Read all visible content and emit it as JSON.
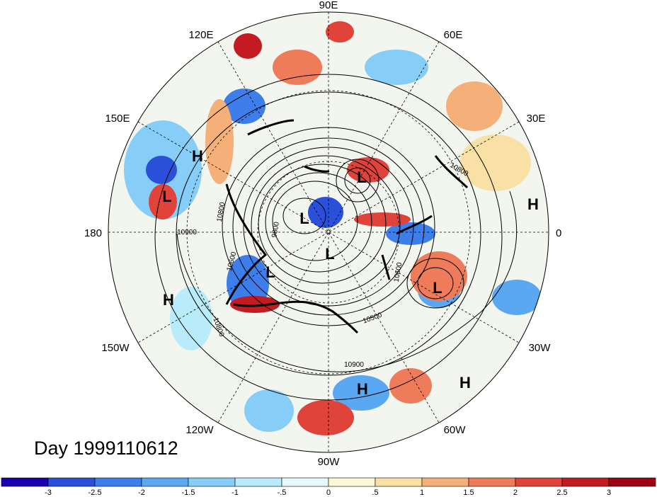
{
  "title": "Day 1999110612",
  "longitude_labels": [
    "90E",
    "60E",
    "30E",
    "0",
    "30W",
    "60W",
    "90W",
    "120W",
    "150W",
    "180",
    "150E",
    "120E"
  ],
  "pressure_centers": [
    {
      "type": "H",
      "label": "H"
    },
    {
      "type": "L",
      "label": "L"
    },
    {
      "type": "L",
      "label": "L"
    },
    {
      "type": "H",
      "label": "H"
    },
    {
      "type": "L",
      "label": "L"
    },
    {
      "type": "L",
      "label": "L"
    },
    {
      "type": "L",
      "label": "L"
    },
    {
      "type": "L",
      "label": "L"
    },
    {
      "type": "H",
      "label": "H"
    },
    {
      "type": "L",
      "label": "L"
    },
    {
      "type": "H",
      "label": "H"
    },
    {
      "type": "H",
      "label": "H"
    }
  ],
  "contour_labels": [
    "10900",
    "10800",
    "10800",
    "10600",
    "10500",
    "10900",
    "10800",
    "9800",
    "10600"
  ],
  "colorbar": {
    "ticks": [
      "-3",
      "-2.5",
      "-2",
      "-1.5",
      "-1",
      "-.5",
      "0",
      ".5",
      "1",
      "1.5",
      "2",
      "2.5",
      "3"
    ],
    "colors": [
      "#1b00b3",
      "#2a4fd9",
      "#3d7eea",
      "#5aa7f2",
      "#86cdf7",
      "#b8ecfb",
      "#e6fafd",
      "#fdf8d8",
      "#f9e0a5",
      "#f5b07a",
      "#ee7c5a",
      "#e0433a",
      "#c41a22",
      "#9e0016"
    ]
  }
}
